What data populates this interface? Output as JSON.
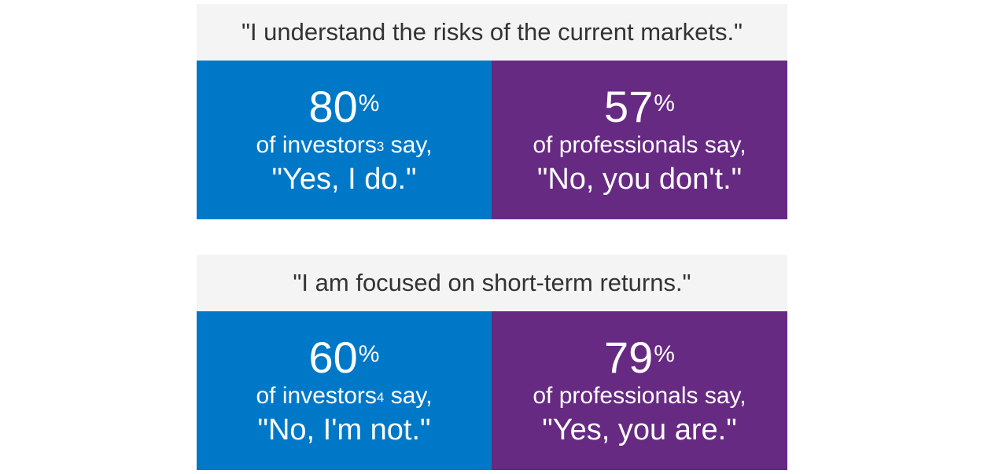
{
  "colors": {
    "investors": "#0078c8",
    "professionals": "#672a83",
    "header_bg": "#f4f4f4",
    "header_text": "#333333"
  },
  "panels": [
    {
      "header": "\"I understand the risks of the current markets.\"",
      "investors": {
        "value": "80",
        "unit": "%",
        "line_start": "of investors",
        "footnote": "3",
        "line_end": " say,",
        "quote": "\"Yes, I do.\""
      },
      "professionals": {
        "value": "57",
        "unit": "%",
        "line": "of professionals say,",
        "quote": "\"No, you don't.\""
      }
    },
    {
      "header": "\"I am focused on short-term returns.\"",
      "investors": {
        "value": "60",
        "unit": "%",
        "line_start": "of investors",
        "footnote": "4",
        "line_end": " say,",
        "quote": "\"No, I'm not.\""
      },
      "professionals": {
        "value": "79",
        "unit": "%",
        "line": "of professionals say,",
        "quote": "\"Yes, you are.\""
      }
    }
  ]
}
